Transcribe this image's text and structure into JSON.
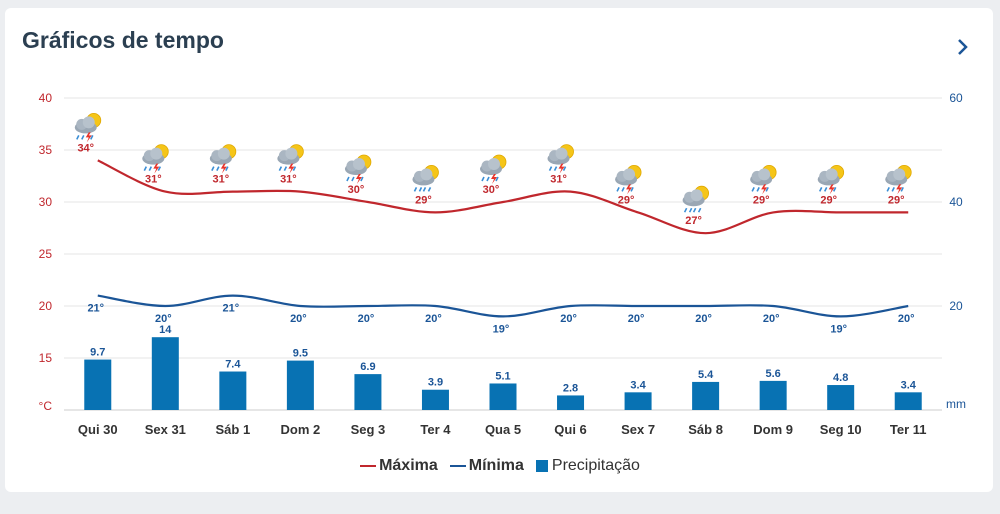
{
  "header": {
    "title": "Gráficos de tempo",
    "next_icon": "chevron-right-icon"
  },
  "chart_data": {
    "type": "line+bar",
    "categories": [
      "Qui 30",
      "Sex 31",
      "Sáb 1",
      "Dom 2",
      "Seg 3",
      "Ter 4",
      "Qua 5",
      "Qui 6",
      "Sex 7",
      "Sáb 8",
      "Dom 9",
      "Seg 10",
      "Ter 11"
    ],
    "left_axis": {
      "unit": "°C",
      "ylim": [
        10,
        40
      ],
      "ticks": [
        15,
        20,
        25,
        30,
        35,
        40
      ]
    },
    "right_axis": {
      "unit": "mm",
      "ylim": [
        0,
        60
      ],
      "ticks": [
        20,
        40,
        60
      ]
    },
    "series": [
      {
        "name": "Máxima",
        "type": "line",
        "axis": "left",
        "color": "#c0272d",
        "values": [
          34,
          31,
          31,
          31,
          30,
          29,
          30,
          31,
          29,
          27,
          29,
          29,
          29
        ],
        "labels": [
          "34°",
          "31°",
          "31°",
          "31°",
          "30°",
          "29°",
          "30°",
          "31°",
          "29°",
          "27°",
          "29°",
          "29°",
          "29°"
        ]
      },
      {
        "name": "Mínima",
        "type": "line",
        "axis": "left",
        "color": "#1b5597",
        "values": [
          21,
          20,
          21,
          20,
          20,
          20,
          19,
          20,
          20,
          20,
          20,
          19,
          20
        ],
        "labels": [
          "21°",
          "20°",
          "21°",
          "20°",
          "20°",
          "20°",
          "19°",
          "20°",
          "20°",
          "20°",
          "20°",
          "19°",
          "20°"
        ]
      },
      {
        "name": "Precipitação",
        "type": "bar",
        "axis": "right",
        "color": "#0872b3",
        "values": [
          9.7,
          14,
          7.4,
          9.5,
          6.9,
          3.9,
          5.1,
          2.8,
          3.4,
          5.4,
          5.6,
          4.8,
          3.4
        ],
        "labels": [
          "9.7",
          "14",
          "7.4",
          "9.5",
          "6.9",
          "3.9",
          "5.1",
          "2.8",
          "3.4",
          "5.4",
          "5.6",
          "4.8",
          "3.4"
        ]
      }
    ],
    "icons": [
      "storm-icon",
      "storm-icon",
      "storm-icon",
      "storm-icon",
      "storm-icon",
      "rain-icon",
      "storm-icon",
      "storm-icon",
      "storm-icon",
      "rain-icon",
      "storm-icon",
      "storm-icon",
      "storm-icon"
    ]
  },
  "legend": {
    "max_label": "Máxima",
    "min_label": "Mínima",
    "precip_label": "Precipitação"
  }
}
